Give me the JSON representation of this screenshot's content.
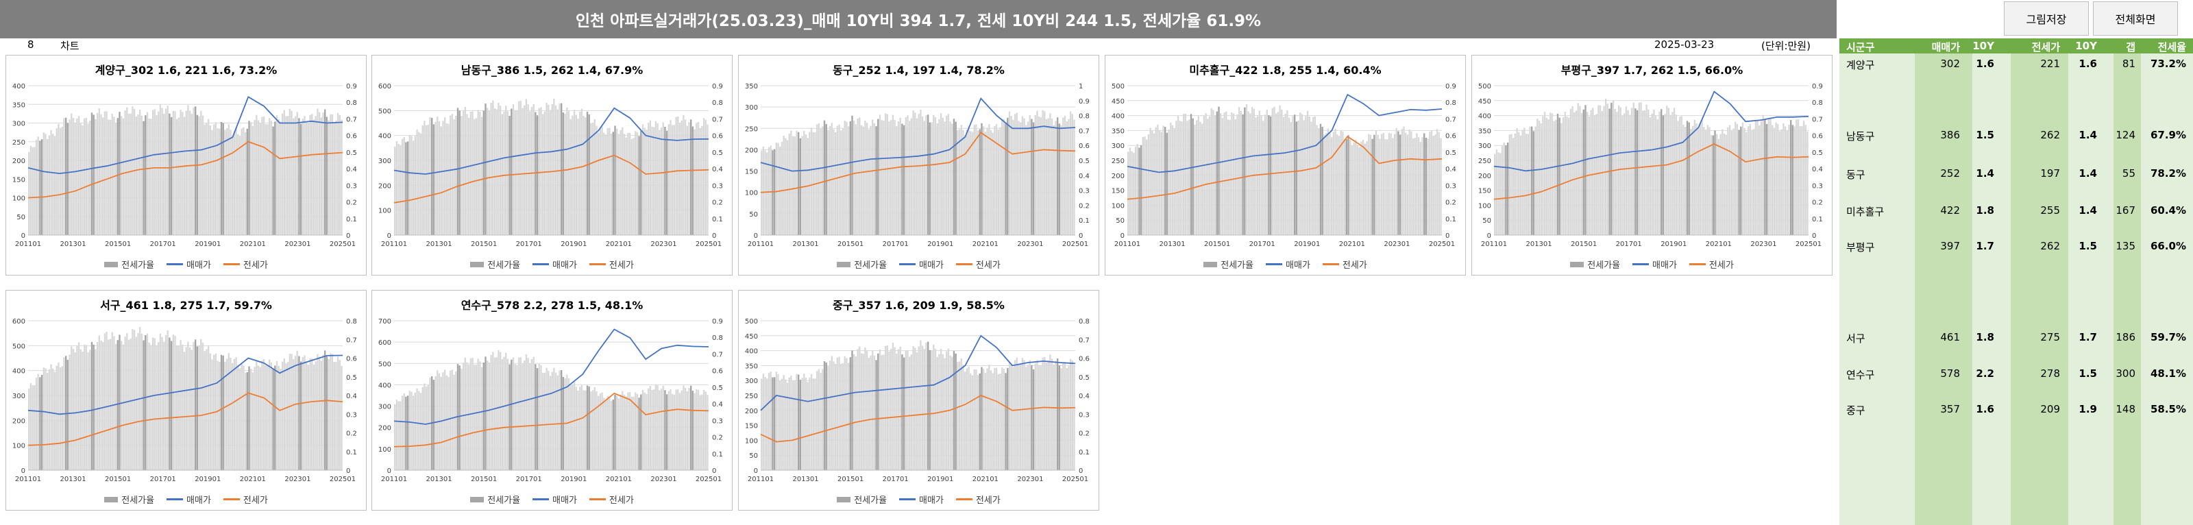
{
  "title": "인천 아파트실거래가(25.03.23)_매매 10Y비 394 1.7, 전세 10Y비 244 1.5, 전세가율 61.9%",
  "buttons": {
    "save": "그림저장",
    "fullscreen": "전체화면"
  },
  "row2": {
    "num": "8",
    "label": "차트",
    "date": "2025-03-23",
    "unit": "(단위:만원)"
  },
  "colors": {
    "sale": "#4472c4",
    "jeonse": "#ed7d31",
    "ratio_bar": "#d9d9d9",
    "ratio_bar_dark": "#a6a6a6",
    "header": "#7f7f7f",
    "table_header": "#70ad47",
    "table_bg": "#e2efda"
  },
  "legend": {
    "ratio": "전세가율",
    "sale": "매매가",
    "jeonse": "전세가"
  },
  "x_ticks": [
    "201101",
    "201301",
    "201501",
    "201701",
    "201901",
    "202101",
    "202301",
    "202501"
  ],
  "table": {
    "headers": [
      "시군구",
      "매매가",
      "10Y",
      "전세가",
      "10Y",
      "갭",
      "전세율"
    ],
    "rows": [
      {
        "name": "계양구",
        "sale": "302",
        "sale10": "1.6",
        "jeonse": "221",
        "jeonse10": "1.6",
        "gap": "81",
        "ratio": "73.2%"
      },
      {
        "name": "남동구",
        "sale": "386",
        "sale10": "1.5",
        "jeonse": "262",
        "jeonse10": "1.4",
        "gap": "124",
        "ratio": "67.9%"
      },
      {
        "name": "동구",
        "sale": "252",
        "sale10": "1.4",
        "jeonse": "197",
        "jeonse10": "1.4",
        "gap": "55",
        "ratio": "78.2%"
      },
      {
        "name": "미추홀구",
        "sale": "422",
        "sale10": "1.8",
        "jeonse": "255",
        "jeonse10": "1.4",
        "gap": "167",
        "ratio": "60.4%"
      },
      {
        "name": "부평구",
        "sale": "397",
        "sale10": "1.7",
        "jeonse": "262",
        "jeonse10": "1.5",
        "gap": "135",
        "ratio": "66.0%"
      },
      {
        "name": "서구",
        "sale": "461",
        "sale10": "1.8",
        "jeonse": "275",
        "jeonse10": "1.7",
        "gap": "186",
        "ratio": "59.7%"
      },
      {
        "name": "연수구",
        "sale": "578",
        "sale10": "2.2",
        "jeonse": "278",
        "jeonse10": "1.5",
        "gap": "300",
        "ratio": "48.1%"
      },
      {
        "name": "중구",
        "sale": "357",
        "sale10": "1.6",
        "jeonse": "209",
        "jeonse10": "1.9",
        "gap": "148",
        "ratio": "58.5%"
      }
    ]
  },
  "chart_data": [
    {
      "type": "line",
      "title": "계양구_302 1.6, 221 1.6, 73.2%",
      "ylim": [
        0,
        400
      ],
      "y_ticks": [
        "0",
        "50",
        "100",
        "150",
        "200",
        "250",
        "300",
        "350",
        "400"
      ],
      "y2lim": [
        0,
        0.9
      ],
      "y2_ticks": [
        "0",
        "0.1",
        "0.2",
        "0.3",
        "0.4",
        "0.5",
        "0.6",
        "0.7",
        "0.8",
        "0.9"
      ],
      "ratio": [
        0.5,
        0.6,
        0.66,
        0.7,
        0.71,
        0.72,
        0.73,
        0.73,
        0.74,
        0.74,
        0.75,
        0.72,
        0.66,
        0.62,
        0.66,
        0.69,
        0.71,
        0.72,
        0.71,
        0.72,
        0.73
      ],
      "sale": [
        180,
        170,
        165,
        170,
        178,
        185,
        195,
        205,
        215,
        220,
        225,
        228,
        240,
        262,
        370,
        345,
        300,
        300,
        305,
        300,
        302
      ],
      "jeonse": [
        100,
        102,
        108,
        118,
        135,
        150,
        165,
        175,
        180,
        180,
        185,
        188,
        200,
        220,
        250,
        235,
        205,
        210,
        215,
        218,
        221
      ]
    },
    {
      "type": "line",
      "title": "남동구_386 1.5, 262 1.4, 67.9%",
      "ylim": [
        0,
        600
      ],
      "y_ticks": [
        "0",
        "100",
        "200",
        "300",
        "400",
        "500",
        "600"
      ],
      "y2lim": [
        0,
        0.9
      ],
      "y2_ticks": [
        "0",
        "0.1",
        "0.2",
        "0.3",
        "0.4",
        "0.5",
        "0.6",
        "0.7",
        "0.8",
        "0.9"
      ],
      "ratio": [
        0.52,
        0.6,
        0.66,
        0.7,
        0.72,
        0.74,
        0.76,
        0.77,
        0.77,
        0.77,
        0.77,
        0.76,
        0.72,
        0.66,
        0.62,
        0.61,
        0.64,
        0.67,
        0.68,
        0.68,
        0.68
      ],
      "sale": [
        260,
        250,
        245,
        255,
        265,
        280,
        295,
        310,
        320,
        330,
        335,
        345,
        365,
        420,
        510,
        470,
        400,
        385,
        380,
        385,
        386
      ],
      "jeonse": [
        130,
        140,
        155,
        170,
        195,
        215,
        230,
        240,
        245,
        250,
        255,
        262,
        275,
        300,
        320,
        290,
        245,
        250,
        258,
        260,
        262
      ]
    },
    {
      "type": "line",
      "title": "동구_252 1.4, 197 1.4, 78.2%",
      "ylim": [
        0,
        350
      ],
      "y_ticks": [
        "0",
        "50",
        "100",
        "150",
        "200",
        "250",
        "300",
        "350"
      ],
      "y2lim": [
        0,
        1
      ],
      "y2_ticks": [
        "0",
        "0.1",
        "0.2",
        "0.3",
        "0.4",
        "0.5",
        "0.6",
        "0.7",
        "0.8",
        "0.9",
        "1"
      ],
      "ratio": [
        0.55,
        0.62,
        0.66,
        0.7,
        0.72,
        0.74,
        0.75,
        0.76,
        0.77,
        0.78,
        0.79,
        0.8,
        0.76,
        0.72,
        0.7,
        0.74,
        0.78,
        0.79,
        0.79,
        0.78,
        0.78
      ],
      "sale": [
        170,
        160,
        150,
        152,
        158,
        165,
        172,
        178,
        180,
        182,
        185,
        190,
        200,
        230,
        320,
        280,
        250,
        250,
        255,
        250,
        252
      ],
      "jeonse": [
        100,
        102,
        108,
        115,
        125,
        135,
        145,
        150,
        155,
        160,
        162,
        165,
        170,
        190,
        240,
        215,
        190,
        195,
        200,
        198,
        197
      ]
    },
    {
      "type": "line",
      "title": "미추홀구_422 1.8, 255 1.4, 60.4%",
      "ylim": [
        0,
        500
      ],
      "y_ticks": [
        "0",
        "50",
        "100",
        "150",
        "200",
        "250",
        "300",
        "350",
        "400",
        "450",
        "500"
      ],
      "y2lim": [
        0,
        0.9
      ],
      "y2_ticks": [
        "0",
        "0.1",
        "0.2",
        "0.3",
        "0.4",
        "0.5",
        "0.6",
        "0.7",
        "0.8",
        "0.9"
      ],
      "ratio": [
        0.5,
        0.58,
        0.64,
        0.68,
        0.7,
        0.72,
        0.73,
        0.74,
        0.74,
        0.74,
        0.73,
        0.72,
        0.68,
        0.62,
        0.58,
        0.56,
        0.6,
        0.62,
        0.61,
        0.6,
        0.6
      ],
      "sale": [
        230,
        220,
        210,
        215,
        225,
        235,
        245,
        255,
        265,
        270,
        275,
        285,
        300,
        350,
        470,
        440,
        400,
        410,
        420,
        418,
        422
      ],
      "jeonse": [
        120,
        125,
        132,
        140,
        155,
        170,
        180,
        190,
        200,
        205,
        210,
        215,
        225,
        260,
        330,
        295,
        240,
        250,
        255,
        252,
        255
      ]
    },
    {
      "type": "line",
      "title": "부평구_397 1.7, 262 1.5, 66.0%",
      "ylim": [
        0,
        500
      ],
      "y_ticks": [
        "0",
        "50",
        "100",
        "150",
        "200",
        "250",
        "300",
        "350",
        "400",
        "450",
        "500"
      ],
      "y2lim": [
        0,
        0.9
      ],
      "y2_ticks": [
        "0",
        "0.1",
        "0.2",
        "0.3",
        "0.4",
        "0.5",
        "0.6",
        "0.7",
        "0.8",
        "0.9"
      ],
      "ratio": [
        0.5,
        0.58,
        0.64,
        0.69,
        0.72,
        0.74,
        0.76,
        0.77,
        0.77,
        0.76,
        0.75,
        0.74,
        0.7,
        0.66,
        0.62,
        0.63,
        0.66,
        0.68,
        0.67,
        0.66,
        0.66
      ],
      "sale": [
        230,
        225,
        215,
        220,
        230,
        240,
        255,
        265,
        275,
        280,
        285,
        295,
        310,
        360,
        480,
        440,
        380,
        385,
        395,
        395,
        397
      ],
      "jeonse": [
        120,
        125,
        132,
        145,
        165,
        185,
        200,
        210,
        220,
        225,
        230,
        235,
        250,
        280,
        305,
        280,
        245,
        255,
        262,
        260,
        262
      ]
    },
    {
      "type": "line",
      "title": "서구_461 1.8, 275 1.7, 59.7%",
      "ylim": [
        0,
        600
      ],
      "y_ticks": [
        "0",
        "100",
        "200",
        "300",
        "400",
        "500",
        "600"
      ],
      "y2lim": [
        0,
        0.8
      ],
      "y2_ticks": [
        "0",
        "0.1",
        "0.2",
        "0.3",
        "0.4",
        "0.5",
        "0.6",
        "0.7",
        "0.8"
      ],
      "ratio": [
        0.45,
        0.52,
        0.58,
        0.64,
        0.68,
        0.7,
        0.72,
        0.72,
        0.71,
        0.7,
        0.68,
        0.66,
        0.62,
        0.58,
        0.55,
        0.56,
        0.58,
        0.6,
        0.6,
        0.6,
        0.6
      ],
      "sale": [
        240,
        235,
        225,
        230,
        240,
        255,
        270,
        285,
        300,
        310,
        320,
        330,
        350,
        400,
        450,
        430,
        390,
        420,
        440,
        460,
        461
      ],
      "jeonse": [
        100,
        102,
        108,
        120,
        140,
        160,
        180,
        195,
        205,
        210,
        215,
        220,
        235,
        270,
        310,
        290,
        240,
        265,
        275,
        280,
        275
      ]
    },
    {
      "type": "line",
      "title": "연수구_578 2.2, 278 1.5, 48.1%",
      "ylim": [
        0,
        700
      ],
      "y_ticks": [
        "0",
        "100",
        "200",
        "300",
        "400",
        "500",
        "600",
        "700"
      ],
      "y2lim": [
        0,
        0.9
      ],
      "y2_ticks": [
        "0",
        "0.1",
        "0.2",
        "0.3",
        "0.4",
        "0.5",
        "0.6",
        "0.7",
        "0.8",
        "0.9"
      ],
      "ratio": [
        0.4,
        0.46,
        0.52,
        0.58,
        0.62,
        0.65,
        0.68,
        0.68,
        0.67,
        0.64,
        0.6,
        0.55,
        0.5,
        0.46,
        0.44,
        0.45,
        0.48,
        0.49,
        0.48,
        0.48,
        0.48
      ],
      "sale": [
        230,
        225,
        215,
        230,
        250,
        265,
        280,
        300,
        320,
        340,
        360,
        390,
        450,
        560,
        660,
        620,
        520,
        570,
        585,
        580,
        578
      ],
      "jeonse": [
        110,
        112,
        118,
        130,
        155,
        175,
        190,
        200,
        205,
        210,
        215,
        220,
        245,
        300,
        360,
        330,
        260,
        275,
        285,
        280,
        278
      ]
    },
    {
      "type": "line",
      "title": "중구_357 1.6, 209 1.9, 58.5%",
      "ylim": [
        0,
        500
      ],
      "y_ticks": [
        "0",
        "50",
        "100",
        "150",
        "200",
        "250",
        "300",
        "350",
        "400",
        "450",
        "500"
      ],
      "y2lim": [
        0,
        0.8
      ],
      "y2_ticks": [
        "0",
        "0.1",
        "0.2",
        "0.3",
        "0.4",
        "0.5",
        "0.6",
        "0.7",
        "0.8"
      ],
      "ratio": [
        0.48,
        0.52,
        0.48,
        0.5,
        0.55,
        0.6,
        0.62,
        0.63,
        0.64,
        0.64,
        0.65,
        0.66,
        0.62,
        0.56,
        0.52,
        0.54,
        0.56,
        0.58,
        0.58,
        0.58,
        0.58
      ],
      "sale": [
        200,
        250,
        240,
        230,
        240,
        250,
        260,
        265,
        270,
        275,
        280,
        285,
        310,
        350,
        450,
        410,
        350,
        360,
        365,
        360,
        357
      ],
      "jeonse": [
        120,
        95,
        100,
        115,
        130,
        145,
        160,
        170,
        175,
        180,
        185,
        190,
        200,
        220,
        250,
        230,
        200,
        205,
        210,
        208,
        209
      ]
    }
  ]
}
